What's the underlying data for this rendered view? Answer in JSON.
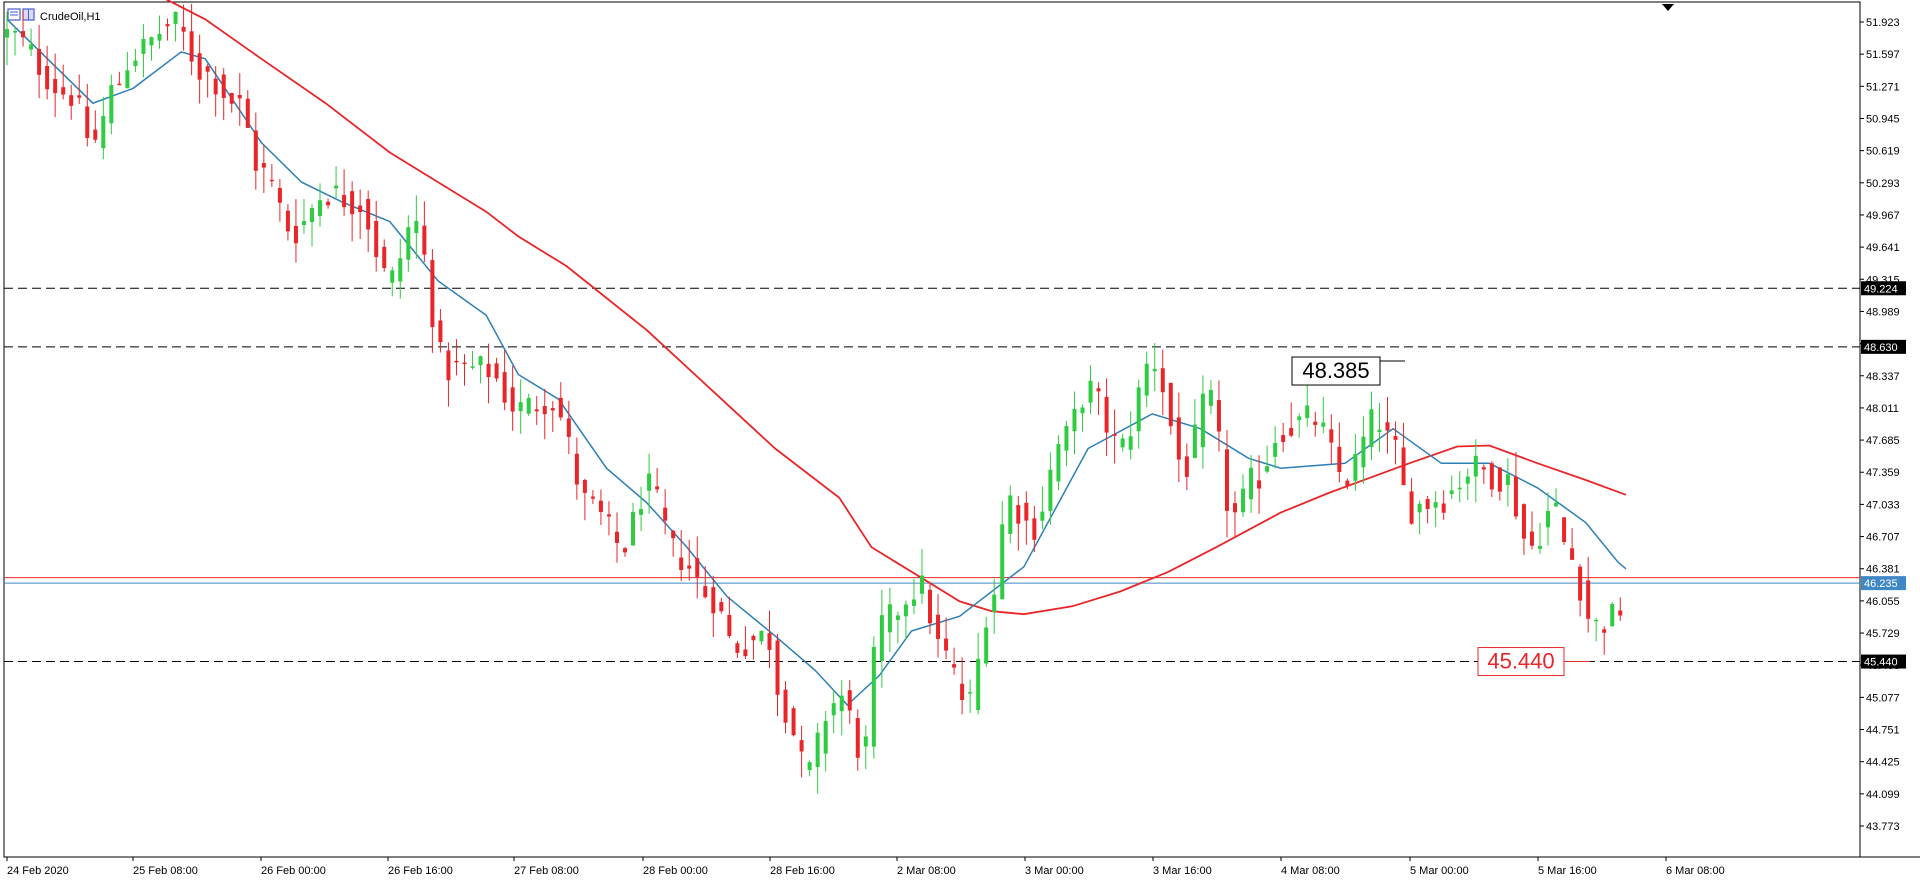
{
  "window": {
    "title": "CrudeOil,H1"
  },
  "chart_data": {
    "type": "candlestick",
    "symbol": "CrudeOil",
    "timeframe": "H1",
    "grid": false,
    "ylim": [
      43.5,
      52.15
    ],
    "price_axis_ticks": [
      "51.923",
      "51.597",
      "51.271",
      "50.945",
      "50.619",
      "50.293",
      "49.967",
      "49.641",
      "49.315",
      "48.989",
      "48.663",
      "48.337",
      "48.011",
      "47.685",
      "47.359",
      "47.033",
      "46.707",
      "46.381",
      "46.055",
      "45.729",
      "45.403",
      "45.077",
      "44.751",
      "44.425",
      "44.099",
      "43.773"
    ],
    "time_axis_labels": [
      "24 Feb 2020",
      "25 Feb 08:00",
      "26 Feb 00:00",
      "26 Feb 16:00",
      "27 Feb 08:00",
      "28 Feb 00:00",
      "28 Feb 16:00",
      "2 Mar 08:00",
      "3 Mar 00:00",
      "3 Mar 16:00",
      "4 Mar 08:00",
      "5 Mar 00:00",
      "5 Mar 16:00",
      "6 Mar 08:00"
    ],
    "horizontal_levels": [
      {
        "value": 49.224,
        "label": "49.224",
        "style": "dashed"
      },
      {
        "value": 48.63,
        "label": "48.630",
        "style": "dashed"
      },
      {
        "value": 45.44,
        "label": "45.440",
        "style": "dashed"
      }
    ],
    "bid_line": {
      "value": 46.291,
      "color": "#e8262a"
    },
    "current_price": {
      "value": 46.235,
      "label": "46.235",
      "color": "#3f88c5"
    },
    "annotations": [
      {
        "text": "48.385",
        "value": 48.385,
        "style": "black-box"
      },
      {
        "text": "45.440",
        "value": 45.44,
        "style": "red-box"
      }
    ],
    "colors": {
      "bull": "#2ecc40",
      "bear": "#e8262a",
      "fast_ma": "#2c7fb8",
      "slow_ma": "#e8262a"
    },
    "anchors": [
      {
        "label": "24 Feb 2020",
        "value": 51.8
      },
      {
        "label": "25 Feb 00:00",
        "value": 51.2
      },
      {
        "label": "25 Feb 03:00",
        "value": 50.7
      },
      {
        "label": "25 Feb 06:00",
        "value": 51.3
      },
      {
        "label": "25 Feb 08:00",
        "value": 51.6
      },
      {
        "label": "25 Feb 13:00",
        "value": 51.9
      },
      {
        "label": "25 Feb 17:00",
        "value": 51.4
      },
      {
        "label": "25 Feb 21:00",
        "value": 51.1
      },
      {
        "label": "26 Feb 00:00",
        "value": 50.4
      },
      {
        "label": "26 Feb 04:00",
        "value": 49.8
      },
      {
        "label": "26 Feb 08:00",
        "value": 50.2
      },
      {
        "label": "26 Feb 12:00",
        "value": 50.1
      },
      {
        "label": "26 Feb 16:00",
        "value": 49.3
      },
      {
        "label": "26 Feb 19:00",
        "value": 49.9
      },
      {
        "label": "26 Feb 23:00",
        "value": 48.4
      },
      {
        "label": "27 Feb 04:00",
        "value": 48.4
      },
      {
        "label": "27 Feb 08:00",
        "value": 48.0
      },
      {
        "label": "27 Feb 12:00",
        "value": 48.1
      },
      {
        "label": "27 Feb 17:00",
        "value": 47.0
      },
      {
        "label": "27 Feb 21:00",
        "value": 46.6
      },
      {
        "label": "28 Feb 00:00",
        "value": 47.2
      },
      {
        "label": "28 Feb 04:00",
        "value": 46.5
      },
      {
        "label": "28 Feb 08:00",
        "value": 46.1
      },
      {
        "label": "28 Feb 11:00",
        "value": 45.6
      },
      {
        "label": "28 Feb 15:00",
        "value": 45.7
      },
      {
        "label": "28 Feb 17:00",
        "value": 45.0
      },
      {
        "label": "28 Feb 20:00",
        "value": 44.3
      },
      {
        "label": "28 Feb 23:00",
        "value": 45.0
      },
      {
        "label": "2 Mar 01:00",
        "value": 45.1
      },
      {
        "label": "2 Mar 04:00",
        "value": 44.5
      },
      {
        "label": "2 Mar 06:00",
        "value": 45.8
      },
      {
        "label": "2 Mar 11:00",
        "value": 46.2
      },
      {
        "label": "2 Mar 14:00",
        "value": 45.5
      },
      {
        "label": "2 Mar 17:00",
        "value": 45.0
      },
      {
        "label": "2 Mar 20:00",
        "value": 46.1
      },
      {
        "label": "2 Mar 22:00",
        "value": 47.1
      },
      {
        "label": "3 Mar 01:00",
        "value": 46.8
      },
      {
        "label": "3 Mar 05:00",
        "value": 47.7
      },
      {
        "label": "3 Mar 08:00",
        "value": 48.2
      },
      {
        "label": "3 Mar 12:00",
        "value": 47.6
      },
      {
        "label": "3 Mar 16:00",
        "value": 48.5
      },
      {
        "label": "3 Mar 20:00",
        "value": 47.4
      },
      {
        "label": "3 Mar 23:00",
        "value": 48.1
      },
      {
        "label": "4 Mar 02:00",
        "value": 46.9
      },
      {
        "label": "4 Mar 05:00",
        "value": 47.3
      },
      {
        "label": "4 Mar 08:00",
        "value": 47.8
      },
      {
        "label": "4 Mar 12:00",
        "value": 47.9
      },
      {
        "label": "4 Mar 16:00",
        "value": 47.3
      },
      {
        "label": "4 Mar 20:00",
        "value": 47.9
      },
      {
        "label": "4 Mar 22:00",
        "value": 47.6
      },
      {
        "label": "5 Mar 00:00",
        "value": 47.0
      },
      {
        "label": "5 Mar 04:00",
        "value": 47.1
      },
      {
        "label": "5 Mar 08:00",
        "value": 47.4
      },
      {
        "label": "5 Mar 12:00",
        "value": 47.3
      },
      {
        "label": "5 Mar 15:00",
        "value": 46.6
      },
      {
        "label": "5 Mar 18:00",
        "value": 47.0
      },
      {
        "label": "5 Mar 20:00",
        "value": 46.5
      },
      {
        "label": "5 Mar 23:00",
        "value": 45.8
      },
      {
        "label": "6 Mar 02:00",
        "value": 45.9
      },
      {
        "label": "6 Mar 03:00",
        "value": 46.24
      }
    ],
    "fast_ma": [
      {
        "label": "24 Feb 2020",
        "value": 51.95
      },
      {
        "label": "25 Feb 03:00",
        "value": 51.1
      },
      {
        "label": "25 Feb 08:00",
        "value": 51.25
      },
      {
        "label": "25 Feb 14:00",
        "value": 51.62
      },
      {
        "label": "25 Feb 17:00",
        "value": 51.55
      },
      {
        "label": "26 Feb 00:00",
        "value": 50.7
      },
      {
        "label": "26 Feb 05:00",
        "value": 50.3
      },
      {
        "label": "26 Feb 10:00",
        "value": 50.1
      },
      {
        "label": "26 Feb 16:00",
        "value": 49.9
      },
      {
        "label": "26 Feb 22:00",
        "value": 49.3
      },
      {
        "label": "27 Feb 04:00",
        "value": 48.95
      },
      {
        "label": "27 Feb 08:00",
        "value": 48.35
      },
      {
        "label": "27 Feb 13:00",
        "value": 48.1
      },
      {
        "label": "27 Feb 19:00",
        "value": 47.4
      },
      {
        "label": "28 Feb 00:00",
        "value": 47.05
      },
      {
        "label": "28 Feb 05:00",
        "value": 46.6
      },
      {
        "label": "28 Feb 10:00",
        "value": 46.1
      },
      {
        "label": "28 Feb 16:00",
        "value": 45.7
      },
      {
        "label": "28 Feb 21:00",
        "value": 45.35
      },
      {
        "label": "2 Mar 02:00",
        "value": 45.0
      },
      {
        "label": "2 Mar 06:00",
        "value": 45.3
      },
      {
        "label": "2 Mar 10:00",
        "value": 45.75
      },
      {
        "label": "2 Mar 16:00",
        "value": 45.9
      },
      {
        "label": "3 Mar 00:00",
        "value": 46.4
      },
      {
        "label": "3 Mar 08:00",
        "value": 47.6
      },
      {
        "label": "3 Mar 16:00",
        "value": 47.95
      },
      {
        "label": "3 Mar 22:00",
        "value": 47.8
      },
      {
        "label": "4 Mar 04:00",
        "value": 47.5
      },
      {
        "label": "4 Mar 08:00",
        "value": 47.4
      },
      {
        "label": "4 Mar 16:00",
        "value": 47.45
      },
      {
        "label": "4 Mar 22:00",
        "value": 47.8
      },
      {
        "label": "5 Mar 04:00",
        "value": 47.45
      },
      {
        "label": "5 Mar 10:00",
        "value": 47.45
      },
      {
        "label": "5 Mar 16:00",
        "value": 47.2
      },
      {
        "label": "5 Mar 22:00",
        "value": 46.85
      },
      {
        "label": "6 Mar 02:00",
        "value": 46.45
      },
      {
        "label": "6 Mar 03:00",
        "value": 46.38
      }
    ],
    "slow_ma": [
      {
        "label": "25 Feb 11:00",
        "value": 52.2
      },
      {
        "label": "25 Feb 17:00",
        "value": 51.95
      },
      {
        "label": "26 Feb 00:00",
        "value": 51.55
      },
      {
        "label": "26 Feb 08:00",
        "value": 51.1
      },
      {
        "label": "26 Feb 16:00",
        "value": 50.6
      },
      {
        "label": "26 Feb 22:00",
        "value": 50.3
      },
      {
        "label": "27 Feb 04:00",
        "value": 50.0
      },
      {
        "label": "27 Feb 08:00",
        "value": 49.75
      },
      {
        "label": "27 Feb 14:00",
        "value": 49.45
      },
      {
        "label": "28 Feb 00:00",
        "value": 48.8
      },
      {
        "label": "28 Feb 08:00",
        "value": 48.2
      },
      {
        "label": "28 Feb 16:00",
        "value": 47.6
      },
      {
        "label": "2 Mar 00:00",
        "value": 47.1
      },
      {
        "label": "2 Mar 05:00",
        "value": 46.6
      },
      {
        "label": "2 Mar 11:00",
        "value": 46.3
      },
      {
        "label": "2 Mar 16:00",
        "value": 46.05
      },
      {
        "label": "2 Mar 20:00",
        "value": 45.95
      },
      {
        "label": "3 Mar 00:00",
        "value": 45.92
      },
      {
        "label": "3 Mar 06:00",
        "value": 46.0
      },
      {
        "label": "3 Mar 12:00",
        "value": 46.15
      },
      {
        "label": "3 Mar 18:00",
        "value": 46.35
      },
      {
        "label": "4 Mar 00:00",
        "value": 46.6
      },
      {
        "label": "4 Mar 08:00",
        "value": 46.95
      },
      {
        "label": "4 Mar 14:00",
        "value": 47.15
      },
      {
        "label": "5 Mar 00:00",
        "value": 47.45
      },
      {
        "label": "5 Mar 06:00",
        "value": 47.62
      },
      {
        "label": "5 Mar 10:00",
        "value": 47.63
      },
      {
        "label": "5 Mar 16:00",
        "value": 47.45
      },
      {
        "label": "5 Mar 22:00",
        "value": 47.28
      },
      {
        "label": "6 Mar 03:00",
        "value": 47.13
      }
    ]
  }
}
